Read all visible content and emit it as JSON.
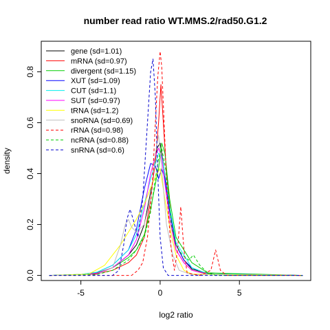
{
  "chart_data": {
    "type": "line",
    "title": "number read ratio WT.MMS.2/rad50.G1.2",
    "xlabel": "log2 ratio",
    "ylabel": "density",
    "xlim": [
      -7.5,
      9.5
    ],
    "ylim": [
      -0.02,
      0.92
    ],
    "xticks": [
      -5,
      0,
      5
    ],
    "yticks": [
      0.0,
      0.2,
      0.4,
      0.6,
      0.8
    ],
    "legend_position": "top-left",
    "grid": false,
    "series": [
      {
        "name": "gene (sd=1.01)",
        "color": "#000000",
        "dash": "solid",
        "points": [
          [
            -7,
            0
          ],
          [
            -5,
            0.003
          ],
          [
            -4,
            0.008
          ],
          [
            -3,
            0.03
          ],
          [
            -2,
            0.08
          ],
          [
            -1.5,
            0.12
          ],
          [
            -1,
            0.2
          ],
          [
            -0.5,
            0.36
          ],
          [
            -0.2,
            0.5
          ],
          [
            0,
            0.52
          ],
          [
            0.2,
            0.44
          ],
          [
            0.5,
            0.3
          ],
          [
            1,
            0.12
          ],
          [
            1.5,
            0.06
          ],
          [
            2,
            0.025
          ],
          [
            3,
            0.008
          ],
          [
            4,
            0.003
          ],
          [
            9,
            0
          ]
        ]
      },
      {
        "name": "mRNA (sd=0.97)",
        "color": "#ff0000",
        "dash": "solid",
        "points": [
          [
            -7,
            0
          ],
          [
            -5,
            0.002
          ],
          [
            -4,
            0.006
          ],
          [
            -3,
            0.02
          ],
          [
            -2,
            0.05
          ],
          [
            -1.5,
            0.08
          ],
          [
            -1,
            0.15
          ],
          [
            -0.6,
            0.3
          ],
          [
            -0.3,
            0.45
          ],
          [
            -0.1,
            0.6
          ],
          [
            0.05,
            0.75
          ],
          [
            0.2,
            0.6
          ],
          [
            0.4,
            0.4
          ],
          [
            0.7,
            0.22
          ],
          [
            1,
            0.1
          ],
          [
            1.5,
            0.05
          ],
          [
            2,
            0.02
          ],
          [
            3,
            0.006
          ],
          [
            9,
            0
          ]
        ]
      },
      {
        "name": "divergent (sd=1.15)",
        "color": "#00cd00",
        "dash": "solid",
        "points": [
          [
            -7,
            0
          ],
          [
            -5,
            0.003
          ],
          [
            -4,
            0.01
          ],
          [
            -3,
            0.03
          ],
          [
            -2,
            0.07
          ],
          [
            -1.5,
            0.1
          ],
          [
            -1,
            0.16
          ],
          [
            -0.6,
            0.26
          ],
          [
            -0.3,
            0.36
          ],
          [
            -0.1,
            0.42
          ],
          [
            0.1,
            0.52
          ],
          [
            0.3,
            0.48
          ],
          [
            0.6,
            0.3
          ],
          [
            1,
            0.15
          ],
          [
            1.5,
            0.1
          ],
          [
            2,
            0.05
          ],
          [
            3,
            0.01
          ],
          [
            9,
            0
          ]
        ]
      },
      {
        "name": "XUT (sd=1.09)",
        "color": "#0000ff",
        "dash": "solid",
        "points": [
          [
            -7,
            0
          ],
          [
            -5,
            0.004
          ],
          [
            -4,
            0.012
          ],
          [
            -3,
            0.04
          ],
          [
            -2,
            0.1
          ],
          [
            -1.5,
            0.18
          ],
          [
            -1,
            0.34
          ],
          [
            -0.6,
            0.44
          ],
          [
            -0.3,
            0.43
          ],
          [
            -0.1,
            0.38
          ],
          [
            0.1,
            0.42
          ],
          [
            0.3,
            0.38
          ],
          [
            0.6,
            0.25
          ],
          [
            1,
            0.12
          ],
          [
            1.5,
            0.06
          ],
          [
            2,
            0.03
          ],
          [
            3,
            0.006
          ],
          [
            9,
            0
          ]
        ]
      },
      {
        "name": "CUT (sd=1.1)",
        "color": "#00eeee",
        "dash": "solid",
        "points": [
          [
            -7,
            0
          ],
          [
            -5,
            0.004
          ],
          [
            -4,
            0.012
          ],
          [
            -3,
            0.04
          ],
          [
            -2,
            0.1
          ],
          [
            -1.5,
            0.16
          ],
          [
            -1,
            0.28
          ],
          [
            -0.6,
            0.38
          ],
          [
            -0.3,
            0.44
          ],
          [
            -0.1,
            0.48
          ],
          [
            0.1,
            0.47
          ],
          [
            0.3,
            0.4
          ],
          [
            0.6,
            0.27
          ],
          [
            1,
            0.13
          ],
          [
            1.5,
            0.08
          ],
          [
            2,
            0.03
          ],
          [
            3,
            0.006
          ],
          [
            9,
            0
          ]
        ]
      },
      {
        "name": "SUT (sd=0.97)",
        "color": "#ff00ff",
        "dash": "solid",
        "points": [
          [
            -7,
            0
          ],
          [
            -5,
            0.002
          ],
          [
            -4,
            0.008
          ],
          [
            -3,
            0.03
          ],
          [
            -2,
            0.08
          ],
          [
            -1.5,
            0.14
          ],
          [
            -1,
            0.26
          ],
          [
            -0.6,
            0.4
          ],
          [
            -0.3,
            0.47
          ],
          [
            -0.1,
            0.5
          ],
          [
            0.1,
            0.46
          ],
          [
            0.3,
            0.36
          ],
          [
            0.6,
            0.22
          ],
          [
            1,
            0.1
          ],
          [
            1.5,
            0.05
          ],
          [
            2,
            0.02
          ],
          [
            3,
            0.004
          ],
          [
            9,
            0
          ]
        ]
      },
      {
        "name": "tRNA (sd=1.2)",
        "color": "#ffff00",
        "dash": "solid",
        "points": [
          [
            -7,
            0
          ],
          [
            -4.5,
            0.005
          ],
          [
            -3.5,
            0.04
          ],
          [
            -3,
            0.08
          ],
          [
            -2.5,
            0.12
          ],
          [
            -2,
            0.17
          ],
          [
            -1.5,
            0.22
          ],
          [
            -1,
            0.28
          ],
          [
            -0.5,
            0.36
          ],
          [
            -0.2,
            0.4
          ],
          [
            0,
            0.42
          ],
          [
            0.3,
            0.3
          ],
          [
            0.7,
            0.16
          ],
          [
            1,
            0.08
          ],
          [
            1.5,
            0.02
          ],
          [
            2,
            0.005
          ],
          [
            9,
            0
          ]
        ]
      },
      {
        "name": "snoRNA (sd=0.69)",
        "color": "#bebebe",
        "dash": "solid",
        "points": [
          [
            -7,
            0
          ],
          [
            -4,
            0.003
          ],
          [
            -3,
            0.03
          ],
          [
            -2.5,
            0.12
          ],
          [
            -2.2,
            0.2
          ],
          [
            -2,
            0.22
          ],
          [
            -1.8,
            0.19
          ],
          [
            -1.5,
            0.17
          ],
          [
            -1,
            0.2
          ],
          [
            -0.6,
            0.3
          ],
          [
            -0.3,
            0.48
          ],
          [
            -0.1,
            0.55
          ],
          [
            0.1,
            0.42
          ],
          [
            0.4,
            0.2
          ],
          [
            0.8,
            0.08
          ],
          [
            1.2,
            0.02
          ],
          [
            2,
            0.003
          ],
          [
            9,
            0
          ]
        ]
      },
      {
        "name": "rRNA (sd=0.98)",
        "color": "#ff0000",
        "dash": "dashed",
        "points": [
          [
            -7,
            0
          ],
          [
            -1.8,
            0
          ],
          [
            -1.4,
            0.02
          ],
          [
            -1.1,
            0.05
          ],
          [
            -0.8,
            0.15
          ],
          [
            -0.5,
            0.35
          ],
          [
            -0.3,
            0.6
          ],
          [
            -0.15,
            0.78
          ],
          [
            0,
            0.88
          ],
          [
            0.1,
            0.82
          ],
          [
            0.25,
            0.6
          ],
          [
            0.45,
            0.3
          ],
          [
            0.7,
            0.1
          ],
          [
            0.9,
            0.02
          ],
          [
            1.1,
            0.1
          ],
          [
            1.3,
            0.27
          ],
          [
            1.5,
            0.1
          ],
          [
            1.7,
            0.01
          ],
          [
            2.5,
            0
          ],
          [
            3.2,
            0.02
          ],
          [
            3.5,
            0.1
          ],
          [
            3.8,
            0.02
          ],
          [
            4.2,
            0
          ],
          [
            9,
            0
          ]
        ]
      },
      {
        "name": "ncRNA (sd=0.88)",
        "color": "#00cd00",
        "dash": "dashed",
        "points": [
          [
            -7,
            0
          ],
          [
            -4,
            0.003
          ],
          [
            -3,
            0.02
          ],
          [
            -2,
            0.06
          ],
          [
            -1.5,
            0.1
          ],
          [
            -1,
            0.15
          ],
          [
            -0.6,
            0.25
          ],
          [
            -0.3,
            0.38
          ],
          [
            -0.1,
            0.46
          ],
          [
            0.1,
            0.5
          ],
          [
            0.4,
            0.4
          ],
          [
            0.7,
            0.2
          ],
          [
            1,
            0.12
          ],
          [
            1.4,
            0.08
          ],
          [
            1.8,
            0.06
          ],
          [
            2.1,
            0.08
          ],
          [
            2.5,
            0.04
          ],
          [
            3,
            0.01
          ],
          [
            3.5,
            0
          ],
          [
            9,
            0
          ]
        ]
      },
      {
        "name": "snRNA (sd=0.6)",
        "color": "#0000cd",
        "dash": "dashed",
        "points": [
          [
            -7,
            0
          ],
          [
            -3,
            0
          ],
          [
            -2.6,
            0.02
          ],
          [
            -2.3,
            0.12
          ],
          [
            -2.1,
            0.22
          ],
          [
            -1.9,
            0.26
          ],
          [
            -1.7,
            0.22
          ],
          [
            -1.4,
            0.15
          ],
          [
            -1.1,
            0.3
          ],
          [
            -0.8,
            0.6
          ],
          [
            -0.6,
            0.8
          ],
          [
            -0.45,
            0.85
          ],
          [
            -0.3,
            0.7
          ],
          [
            -0.15,
            0.4
          ],
          [
            0,
            0.15
          ],
          [
            0.2,
            0.03
          ],
          [
            0.5,
            0
          ],
          [
            9,
            0
          ]
        ]
      }
    ]
  }
}
